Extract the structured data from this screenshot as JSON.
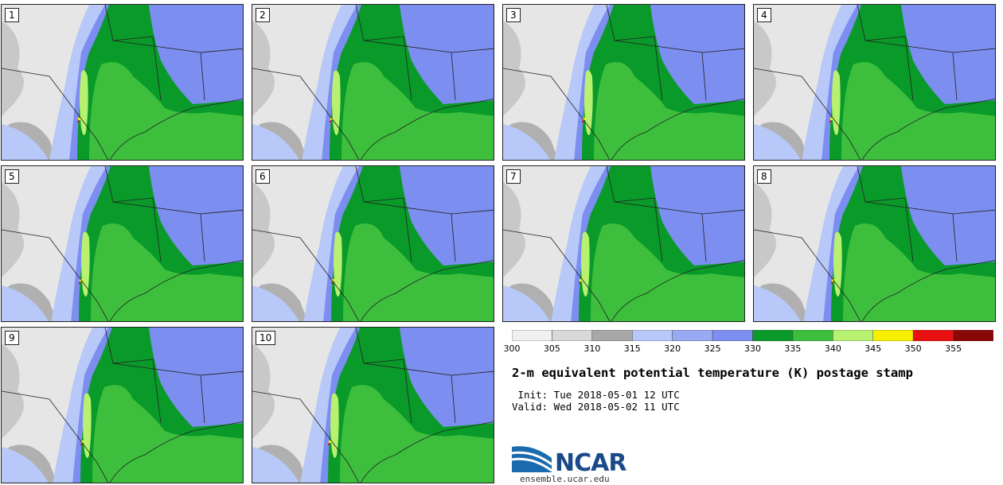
{
  "panels": [
    {
      "label": "1"
    },
    {
      "label": "2"
    },
    {
      "label": "3"
    },
    {
      "label": "4"
    },
    {
      "label": "5"
    },
    {
      "label": "6"
    },
    {
      "label": "7"
    },
    {
      "label": "8"
    },
    {
      "label": "9"
    },
    {
      "label": "10"
    }
  ],
  "colorbar": {
    "ticks": [
      "300",
      "305",
      "310",
      "315",
      "320",
      "325",
      "330",
      "335",
      "340",
      "345",
      "350",
      "355"
    ],
    "colors": [
      "#f0f0f0",
      "#d8d8d8",
      "#a8a8a8",
      "#b8c8f8",
      "#98aaf4",
      "#7c8ef0",
      "#0a9a2a",
      "#3dbf3d",
      "#b8f070",
      "#f8f000",
      "#e81010",
      "#8a0808"
    ]
  },
  "title": "2-m equivalent potential temperature (K) postage stamp",
  "init": " Init: Tue 2018-05-01 12 UTC",
  "valid": "Valid: Wed 2018-05-02 11 UTC",
  "logo": {
    "text": "NCAR",
    "site": "ensemble.ucar.edu"
  }
}
